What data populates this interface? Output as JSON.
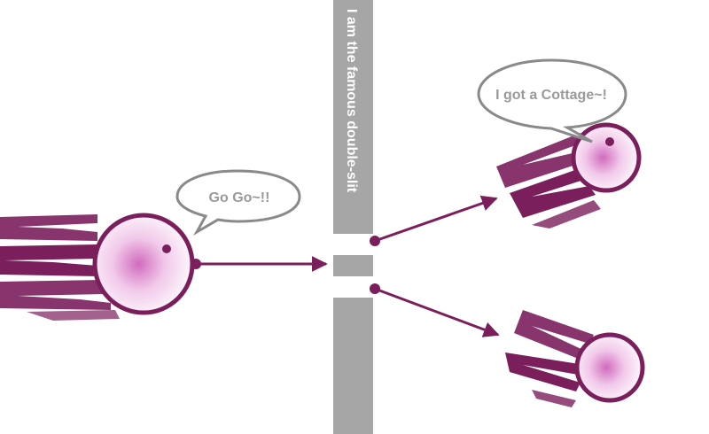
{
  "slit": {
    "label": "I am the famous double-slit",
    "barrier_color": "#a6a6a6"
  },
  "particles": {
    "incoming": {
      "speech": "Go Go~!!"
    },
    "deflected_upper": {
      "speech": "I got a Cottage~!"
    },
    "deflected_lower": {
      "speech": ""
    }
  },
  "colors": {
    "particle_purple": "#7a1f5c",
    "particle_glow": "#d16bbd",
    "bubble_stroke": "#8a8a8a",
    "bubble_text": "#9a9a9a"
  },
  "icons": [
    "particle-ball",
    "speech-bubble",
    "trajectory-arrow"
  ]
}
